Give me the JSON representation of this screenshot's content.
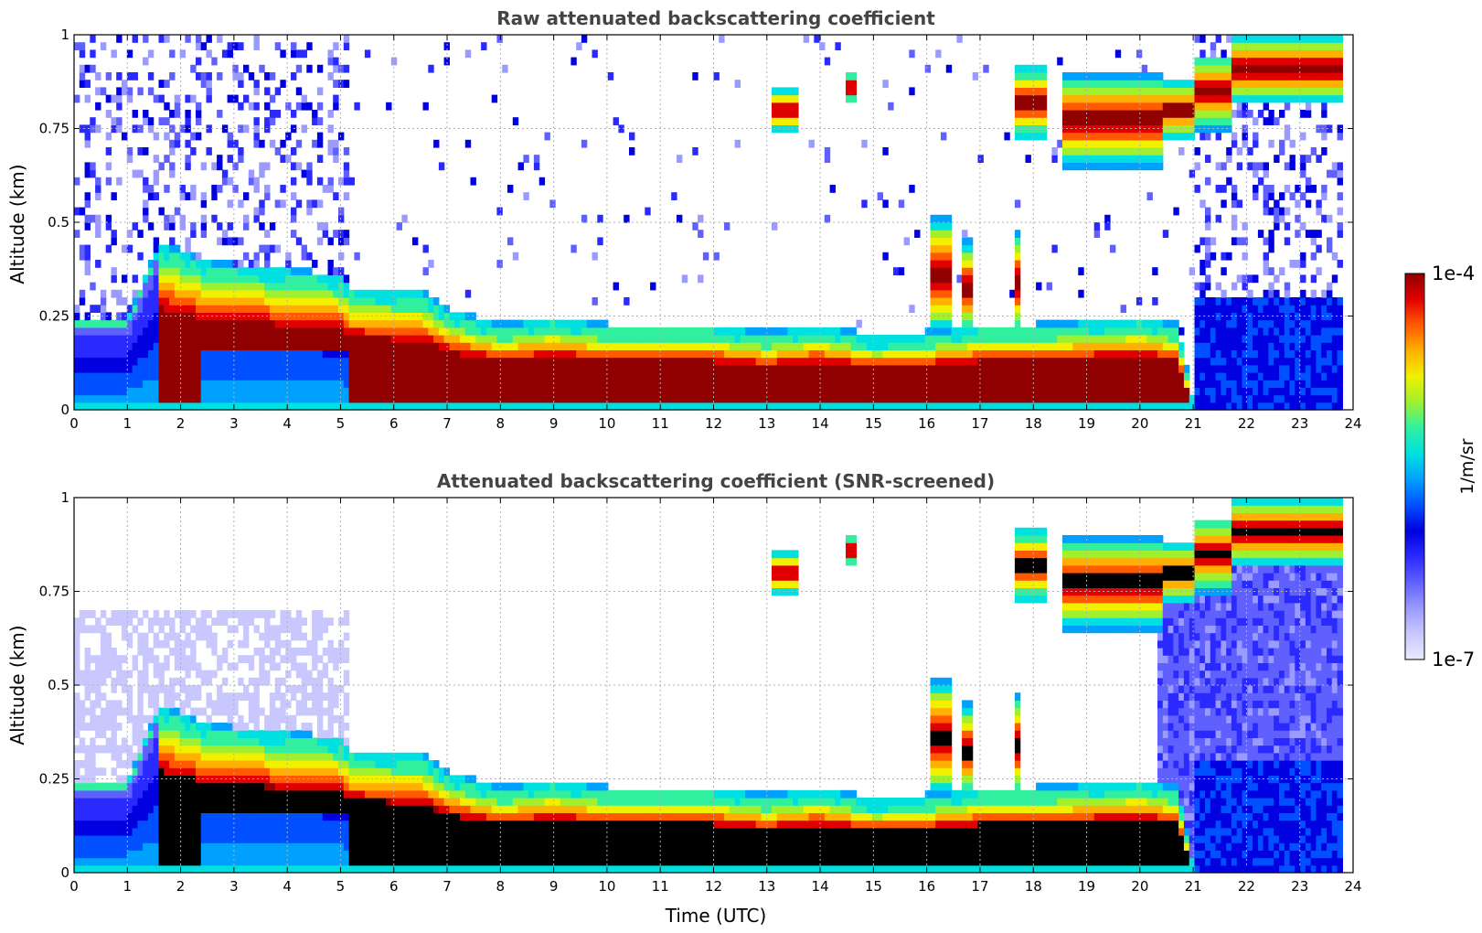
{
  "chart_data": [
    {
      "type": "heatmap",
      "title": "Raw attenuated backscattering coefficient",
      "xlabel": "",
      "ylabel": "Altitude (km)",
      "xlim": [
        0,
        24
      ],
      "ylim": [
        0,
        1
      ],
      "xticks": [
        "0",
        "1",
        "2",
        "3",
        "4",
        "5",
        "6",
        "7",
        "8",
        "9",
        "10",
        "11",
        "12",
        "13",
        "14",
        "15",
        "16",
        "17",
        "18",
        "19",
        "20",
        "21",
        "22",
        "23",
        "24"
      ],
      "yticks": [
        "0",
        "0.25",
        "0.5",
        "0.75",
        "1"
      ],
      "grid": true,
      "mask_low_snr": false,
      "boundary_layer_top_km": [
        [
          0,
          0.22
        ],
        [
          1,
          0.22
        ],
        [
          1.6,
          0.42
        ],
        [
          2.5,
          0.37
        ],
        [
          3,
          0.36
        ],
        [
          4,
          0.35
        ],
        [
          5,
          0.33
        ],
        [
          5.2,
          0.3
        ],
        [
          6,
          0.29
        ],
        [
          6.5,
          0.29
        ],
        [
          7,
          0.24
        ],
        [
          8,
          0.2
        ],
        [
          9,
          0.22
        ],
        [
          10,
          0.2
        ],
        [
          11,
          0.2
        ],
        [
          12,
          0.2
        ],
        [
          13,
          0.18
        ],
        [
          14,
          0.2
        ],
        [
          15,
          0.17
        ],
        [
          16,
          0.18
        ],
        [
          17,
          0.2
        ],
        [
          18,
          0.2
        ],
        [
          19,
          0.21
        ],
        [
          20,
          0.22
        ],
        [
          20.7,
          0.2
        ],
        [
          21,
          0.0
        ],
        [
          24,
          0.0
        ]
      ],
      "clouds": [
        {
          "t0": 17.7,
          "t1": 18.2,
          "alt0": 0.72,
          "alt1": 0.92
        },
        {
          "t0": 18.5,
          "t1": 20.4,
          "alt0": 0.65,
          "alt1": 0.9
        },
        {
          "t0": 20.4,
          "t1": 21.0,
          "alt0": 0.72,
          "alt1": 0.88
        },
        {
          "t0": 21.0,
          "t1": 21.7,
          "alt0": 0.75,
          "alt1": 0.95
        },
        {
          "t0": 21.7,
          "t1": 23.8,
          "alt0": 0.82,
          "alt1": 1.0
        },
        {
          "t0": 13.1,
          "t1": 13.6,
          "alt0": 0.74,
          "alt1": 0.86
        },
        {
          "t0": 14.5,
          "t1": 14.7,
          "alt0": 0.82,
          "alt1": 0.9
        }
      ],
      "plumes": [
        {
          "t0": 16.1,
          "t1": 16.5,
          "alt0": 0.2,
          "alt1": 0.52
        },
        {
          "t0": 16.7,
          "t1": 16.9,
          "alt0": 0.2,
          "alt1": 0.45
        },
        {
          "t0": 17.7,
          "t1": 17.8,
          "alt0": 0.2,
          "alt1": 0.48
        }
      ]
    },
    {
      "type": "heatmap",
      "title": "Attenuated backscattering coefficient (SNR-screened)",
      "xlabel": "Time (UTC)",
      "ylabel": "Altitude (km)",
      "xlim": [
        0,
        24
      ],
      "ylim": [
        0,
        1
      ],
      "xticks": [
        "0",
        "1",
        "2",
        "3",
        "4",
        "5",
        "6",
        "7",
        "8",
        "9",
        "10",
        "11",
        "12",
        "13",
        "14",
        "15",
        "16",
        "17",
        "18",
        "19",
        "20",
        "21",
        "22",
        "23",
        "24"
      ],
      "yticks": [
        "0",
        "0.25",
        "0.5",
        "0.75",
        "1"
      ],
      "grid": true,
      "mask_low_snr": true
    }
  ],
  "colorbar": {
    "label": "1/m/sr",
    "max_label": "1e-4",
    "min_label": "1e-7",
    "colors": [
      "#eaeaff",
      "#c8c8ff",
      "#9a9aff",
      "#6060ff",
      "#2a2aff",
      "#0000e0",
      "#0050ff",
      "#00a0ff",
      "#00e0e0",
      "#30f0a0",
      "#a0f030",
      "#f0f000",
      "#ffb000",
      "#ff5a00",
      "#e00000",
      "#900000"
    ]
  }
}
